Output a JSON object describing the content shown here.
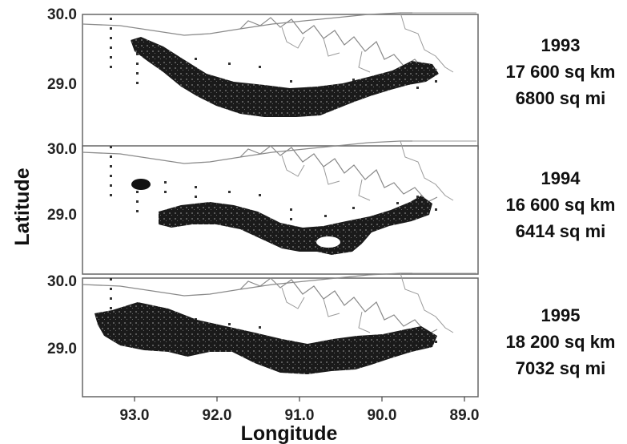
{
  "axes": {
    "x_title": "Longitude",
    "y_title": "Latitude",
    "x_ticks": [
      "93.0",
      "92.0",
      "91.0",
      "90.0",
      "89.0"
    ],
    "y_ticks": [
      "30.0",
      "29.0"
    ]
  },
  "panels": [
    {
      "year": "1993",
      "area_km": "17 600 sq km",
      "area_mi": "6800 sq mi"
    },
    {
      "year": "1994",
      "area_km": "16 600 sq km",
      "area_mi": "6414 sq mi"
    },
    {
      "year": "1995",
      "area_km": "18 200 sq km",
      "area_mi": "7032 sq mi"
    }
  ],
  "colors": {
    "hypoxia_fill": "#111111",
    "coastline": "#8a8a8a",
    "station": "#333333"
  }
}
